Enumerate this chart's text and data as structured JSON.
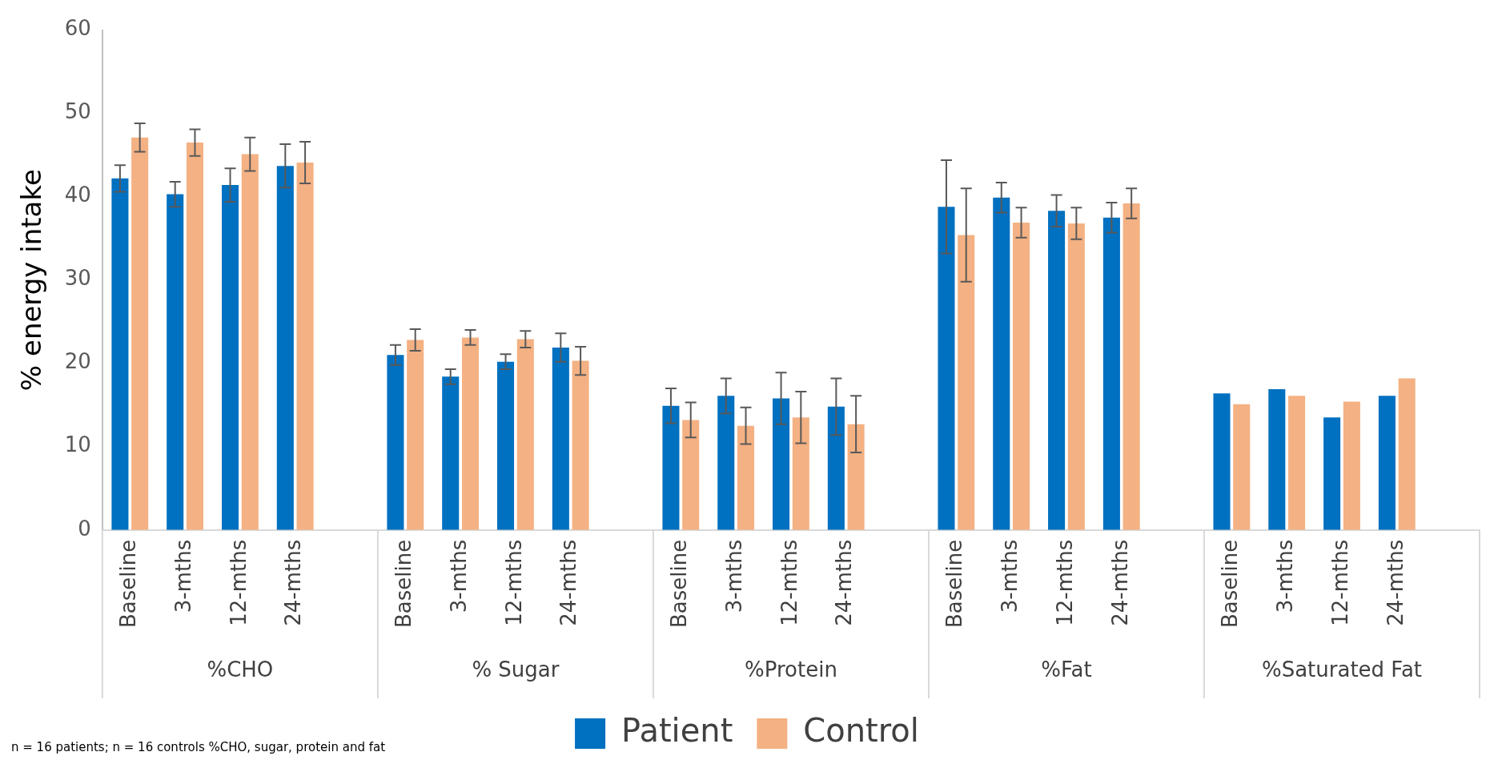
{
  "chart_data": {
    "type": "bar",
    "ylabel": "% energy intake",
    "categories": [
      "Baseline",
      "3-mths",
      "12-mths",
      "24-mths",
      null,
      "Baseline",
      "3-mths",
      "12-mths",
      "24-mths",
      null,
      "Baseline",
      "3-mths",
      "12-mths",
      "24-mths",
      null,
      "Baseline",
      "3-mths",
      "12-mths",
      "24-mths",
      null,
      "Baseline",
      "3-mths",
      "12-mths",
      "24-mths",
      null
    ],
    "series": [
      {
        "name": "Patient",
        "color": "#0070c0",
        "values": [
          42.2,
          40.3,
          41.4,
          43.7,
          null,
          21.0,
          18.4,
          20.2,
          21.9,
          null,
          14.9,
          16.1,
          15.8,
          14.8,
          null,
          38.8,
          39.9,
          38.3,
          37.5,
          null,
          16.4,
          16.9,
          13.5,
          16.1,
          null
        ],
        "errors": [
          1.6,
          1.5,
          2.0,
          2.6,
          null,
          1.2,
          0.9,
          0.9,
          1.7,
          null,
          2.1,
          2.1,
          3.1,
          3.4,
          null,
          5.6,
          1.8,
          1.9,
          1.8,
          null,
          null,
          null,
          null,
          null,
          null
        ]
      },
      {
        "name": "Control",
        "color": "#f4b183",
        "values": [
          47.1,
          46.5,
          45.1,
          44.1,
          null,
          22.8,
          23.1,
          22.9,
          20.3,
          null,
          13.2,
          12.5,
          13.5,
          12.7,
          null,
          35.4,
          36.9,
          36.8,
          39.2,
          null,
          15.1,
          16.1,
          15.4,
          18.2,
          null
        ],
        "errors": [
          1.7,
          1.6,
          2.0,
          2.5,
          null,
          1.3,
          0.9,
          1.0,
          1.7,
          null,
          2.1,
          2.2,
          3.1,
          3.4,
          null,
          5.6,
          1.8,
          1.9,
          1.8,
          null,
          null,
          null,
          null,
          null,
          null
        ]
      }
    ],
    "annotations": [
      "%CHO",
      "% Sugar",
      "%Protein",
      "%Fat",
      "%Saturated Fat",
      "n = 16 patients; n = 16 controls %CHO, sugar, protein and fat"
    ],
    "ylim": [
      0,
      60
    ],
    "yticks": [
      0,
      10,
      20,
      30,
      40,
      50,
      60
    ],
    "grid": false,
    "legend": "bottom"
  }
}
